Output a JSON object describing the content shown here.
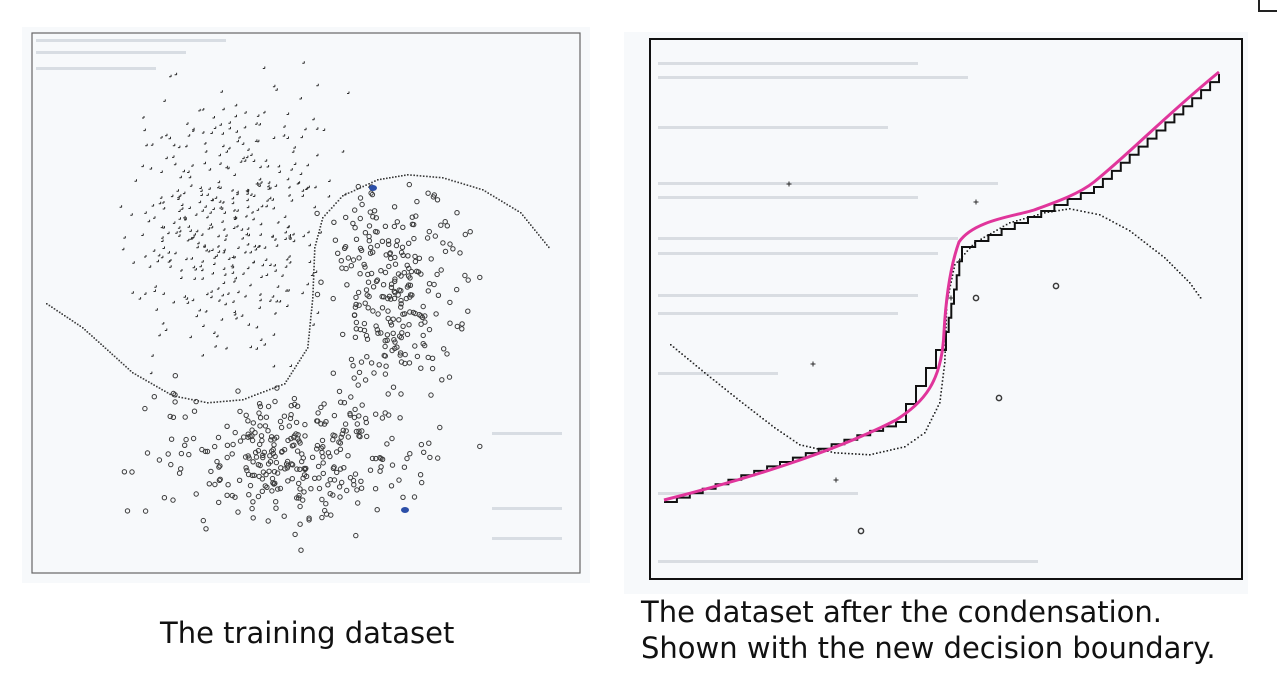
{
  "captions": {
    "left": "The training dataset",
    "right_line1": "The dataset after the condensation.",
    "right_line2": "Shown with the new decision boundary."
  },
  "colors": {
    "background": "#ffffff",
    "scan_paper": "#f7f9fb",
    "ink": "#2b2b2b",
    "highlight_points": "#2c4fa8",
    "new_boundary": "#e0359b"
  },
  "panels": [
    {
      "id": "left",
      "content": "training-dataset-scatter",
      "point_classes": [
        "plus",
        "circle"
      ],
      "old_boundary": "dotted"
    },
    {
      "id": "right",
      "content": "condensed-dataset-scatter",
      "point_classes": [
        "plus",
        "circle"
      ],
      "old_boundary": "dotted",
      "new_boundary": "staircase"
    }
  ]
}
